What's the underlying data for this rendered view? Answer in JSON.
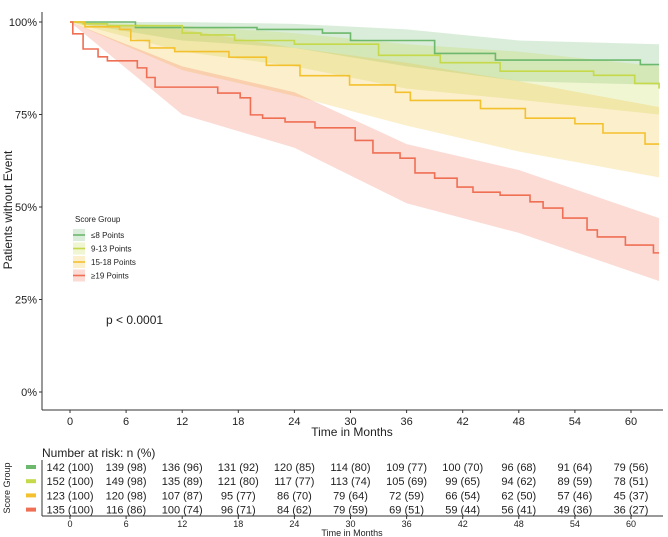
{
  "chart_data": {
    "type": "line",
    "subtype": "kaplan-meier",
    "xlabel": "Time in Months",
    "ylabel": "Patients without Event",
    "xlim": [
      -2,
      63
    ],
    "ylim": [
      0,
      100
    ],
    "x_ticks": [
      0,
      6,
      12,
      18,
      24,
      30,
      36,
      42,
      48,
      54,
      60
    ],
    "y_ticks": [
      0,
      25,
      50,
      75,
      100
    ],
    "y_tick_labels": [
      "0%",
      "25%",
      "50%",
      "75%",
      "100%"
    ],
    "legend": {
      "title": "Score Group",
      "placement": "center-left"
    },
    "annotation": "p < 0.0001",
    "series": [
      {
        "name": "≤8 Points",
        "color": "#6cb86c",
        "steps": [
          [
            0,
            100
          ],
          [
            7,
            98.5
          ],
          [
            20,
            98
          ],
          [
            27,
            97
          ],
          [
            30,
            95
          ],
          [
            39,
            91.5
          ],
          [
            45.5,
            89.7
          ],
          [
            61,
            88.5
          ],
          [
            63,
            88.5
          ]
        ],
        "ci": {
          "t": [
            0,
            12,
            24,
            36,
            48,
            63
          ],
          "lower": [
            100,
            95,
            93,
            88,
            84,
            83
          ],
          "upper": [
            100,
            100,
            99.5,
            98,
            95,
            94
          ]
        }
      },
      {
        "name": "9-13 Points",
        "color": "#c5d94a",
        "steps": [
          [
            0,
            100
          ],
          [
            1.4,
            99.5
          ],
          [
            4,
            99
          ],
          [
            12,
            97
          ],
          [
            14,
            96.5
          ],
          [
            17.6,
            95
          ],
          [
            24,
            94
          ],
          [
            33,
            91
          ],
          [
            39.6,
            89
          ],
          [
            46,
            86.7
          ],
          [
            56,
            85.6
          ],
          [
            60.4,
            83.4
          ],
          [
            63,
            82
          ]
        ],
        "ci": {
          "t": [
            0,
            12,
            24,
            36,
            48,
            63
          ],
          "lower": [
            100,
            92,
            88,
            82,
            79,
            75
          ],
          "upper": [
            100,
            99,
            97,
            94,
            92,
            88
          ]
        }
      },
      {
        "name": "15-18 Points",
        "color": "#f4c12e",
        "steps": [
          [
            0,
            100
          ],
          [
            1.6,
            98.7
          ],
          [
            5.3,
            98
          ],
          [
            6.5,
            95
          ],
          [
            8.5,
            93
          ],
          [
            11.2,
            92
          ],
          [
            17,
            90.5
          ],
          [
            21,
            88.3
          ],
          [
            24.6,
            85.5
          ],
          [
            29.9,
            83
          ],
          [
            34.8,
            81
          ],
          [
            36.4,
            78.8
          ],
          [
            43.9,
            76.6
          ],
          [
            48.7,
            74
          ],
          [
            54,
            72.5
          ],
          [
            57,
            70
          ],
          [
            61.5,
            67
          ],
          [
            63,
            67
          ]
        ],
        "ci": {
          "t": [
            0,
            12,
            24,
            36,
            48,
            63
          ],
          "lower": [
            100,
            87,
            80,
            72,
            65,
            58
          ],
          "upper": [
            100,
            98,
            93,
            89,
            84,
            77
          ]
        }
      },
      {
        "name": "≥19 Points",
        "color": "#ef6f55",
        "steps": [
          [
            0,
            100
          ],
          [
            0.3,
            96.8
          ],
          [
            1.4,
            92.7
          ],
          [
            3,
            90.6
          ],
          [
            4,
            89.5
          ],
          [
            7.2,
            87.6
          ],
          [
            8.2,
            85
          ],
          [
            9.1,
            82.4
          ],
          [
            15.8,
            80.8
          ],
          [
            18.2,
            79.5
          ],
          [
            19.3,
            74.9
          ],
          [
            20.6,
            74
          ],
          [
            23,
            73
          ],
          [
            26.2,
            71.4
          ],
          [
            30.5,
            68
          ],
          [
            32.4,
            64.6
          ],
          [
            35.3,
            63.2
          ],
          [
            36.9,
            59.2
          ],
          [
            39,
            57.8
          ],
          [
            41.4,
            55.4
          ],
          [
            43.1,
            54
          ],
          [
            46,
            53.2
          ],
          [
            49.2,
            51.4
          ],
          [
            50.6,
            49.7
          ],
          [
            52.7,
            47
          ],
          [
            55.3,
            43.8
          ],
          [
            56.4,
            41.9
          ],
          [
            59.4,
            39.7
          ],
          [
            62.4,
            37.6
          ],
          [
            63,
            37.6
          ]
        ],
        "ci": {
          "t": [
            0,
            12,
            24,
            36,
            48,
            63
          ],
          "lower": [
            100,
            75,
            66,
            51,
            43,
            30
          ],
          "upper": [
            100,
            88,
            81,
            67,
            60,
            47
          ]
        }
      }
    ]
  },
  "risk_table": {
    "title": "Number at risk: n (%)",
    "ylabel": "Score Group",
    "xlabel": "Time in Months",
    "rows": [
      [
        "142 (100)",
        "139 (98)",
        "136 (96)",
        "131 (92)",
        "120 (85)",
        "114 (80)",
        "109 (77)",
        "100 (70)",
        "96 (68)",
        "91 (64)",
        "79 (56)"
      ],
      [
        "152 (100)",
        "149 (98)",
        "135 (89)",
        "121 (80)",
        "117 (77)",
        "113 (74)",
        "105 (69)",
        "99 (65)",
        "94 (62)",
        "89 (59)",
        "78 (51)"
      ],
      [
        "123 (100)",
        "120 (98)",
        "107 (87)",
        "95 (77)",
        "86 (70)",
        "79 (64)",
        "72 (59)",
        "66 (54)",
        "62 (50)",
        "57 (46)",
        "45 (37)"
      ],
      [
        "135 (100)",
        "116 (86)",
        "100 (74)",
        "96 (71)",
        "84 (62)",
        "79 (59)",
        "69 (51)",
        "59 (44)",
        "56 (41)",
        "49 (36)",
        "36 (27)"
      ]
    ]
  }
}
